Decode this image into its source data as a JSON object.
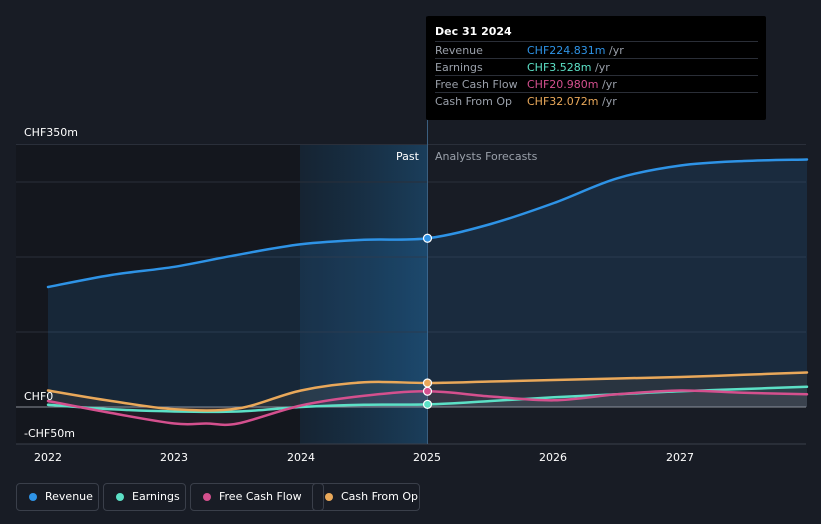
{
  "chart_data": {
    "type": "line",
    "x_ticks": [
      "2022",
      "2023",
      "2024",
      "2025",
      "2026",
      "2027"
    ],
    "y_ticks": [
      "CHF350m",
      "CHF0",
      "-CHF50m"
    ],
    "ylim": [
      -50,
      350
    ],
    "divider_x": 2025.0,
    "region_past": "Past",
    "region_forecast": "Analysts Forecasts",
    "series": [
      {
        "name": "Revenue",
        "color": "#2e93e6",
        "x": [
          2022.0,
          2022.5,
          2023.0,
          2023.5,
          2024.0,
          2024.5,
          2025.0,
          2025.5,
          2026.0,
          2026.5,
          2027.0,
          2027.5,
          2028.0
        ],
        "values": [
          160,
          176,
          187,
          203,
          217,
          223,
          225,
          244,
          272,
          305,
          322,
          328,
          330
        ]
      },
      {
        "name": "Earnings",
        "color": "#5ce0c6",
        "x": [
          2022.0,
          2022.5,
          2023.0,
          2023.5,
          2024.0,
          2024.5,
          2025.0,
          2025.5,
          2026.0,
          2026.5,
          2027.0,
          2027.5,
          2028.0
        ],
        "values": [
          3,
          -3,
          -6,
          -6,
          0,
          3,
          3.5,
          8,
          13,
          17,
          21,
          24,
          27
        ]
      },
      {
        "name": "Free Cash Flow",
        "color": "#d4508e",
        "x": [
          2022.0,
          2022.5,
          2023.0,
          2023.25,
          2023.5,
          2024.0,
          2024.5,
          2025.0,
          2025.5,
          2026.0,
          2026.5,
          2027.0,
          2027.5,
          2028.0
        ],
        "values": [
          8,
          -8,
          -22,
          -22,
          -22,
          2,
          15,
          21,
          14,
          9,
          17,
          22,
          19,
          17
        ]
      },
      {
        "name": "Cash From Op",
        "color": "#e9a85a",
        "x": [
          2022.0,
          2022.5,
          2023.0,
          2023.5,
          2024.0,
          2024.5,
          2025.0,
          2025.5,
          2026.0,
          2026.5,
          2027.0,
          2027.5,
          2028.0
        ],
        "values": [
          22,
          8,
          -3,
          -2,
          22,
          33,
          32,
          34,
          36,
          38,
          40,
          43,
          46
        ]
      }
    ],
    "highlight_x": 2025.0
  },
  "tooltip": {
    "date": "Dec 31 2024",
    "unit": "/yr",
    "rows": [
      {
        "name": "Revenue",
        "value": "CHF224.831m",
        "color": "#2e93e6"
      },
      {
        "name": "Earnings",
        "value": "CHF3.528m",
        "color": "#5ce0c6"
      },
      {
        "name": "Free Cash Flow",
        "value": "CHF20.980m",
        "color": "#d4508e"
      },
      {
        "name": "Cash From Op",
        "value": "CHF32.072m",
        "color": "#e9a85a"
      }
    ]
  },
  "legend": [
    {
      "label": "Revenue",
      "color": "#2e93e6"
    },
    {
      "label": "Earnings",
      "color": "#5ce0c6"
    },
    {
      "label": "Free Cash Flow",
      "color": "#d4508e"
    },
    {
      "label": "Cash From Op",
      "color": "#e9a85a"
    }
  ]
}
